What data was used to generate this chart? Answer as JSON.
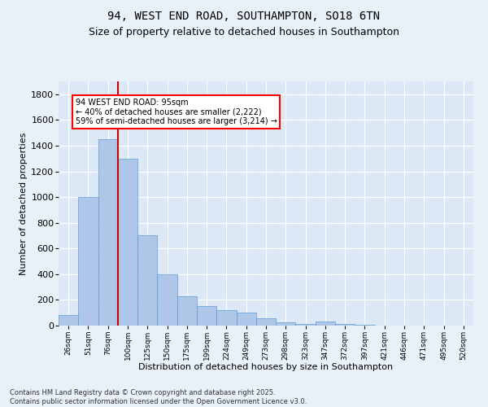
{
  "title1": "94, WEST END ROAD, SOUTHAMPTON, SO18 6TN",
  "title2": "Size of property relative to detached houses in Southampton",
  "xlabel": "Distribution of detached houses by size in Southampton",
  "ylabel": "Number of detached properties",
  "categories": [
    "26sqm",
    "51sqm",
    "76sqm",
    "100sqm",
    "125sqm",
    "150sqm",
    "175sqm",
    "199sqm",
    "224sqm",
    "249sqm",
    "273sqm",
    "298sqm",
    "323sqm",
    "347sqm",
    "372sqm",
    "397sqm",
    "421sqm",
    "446sqm",
    "471sqm",
    "495sqm",
    "520sqm"
  ],
  "values": [
    80,
    1000,
    1450,
    1300,
    700,
    400,
    225,
    150,
    120,
    100,
    60,
    25,
    10,
    30,
    10,
    5,
    2,
    1,
    0,
    0,
    0
  ],
  "bar_color": "#aec6e8",
  "bar_edge_color": "#5b9bd5",
  "vline_color": "#cc0000",
  "annotation_text": "94 WEST END ROAD: 95sqm\n← 40% of detached houses are smaller (2,222)\n59% of semi-detached houses are larger (3,214) →",
  "ylim": [
    0,
    1900
  ],
  "yticks": [
    0,
    200,
    400,
    600,
    800,
    1000,
    1200,
    1400,
    1600,
    1800
  ],
  "bg_color": "#e8f0f8",
  "plot_bg_color": "#dce8f5",
  "footer": "Contains HM Land Registry data © Crown copyright and database right 2025.\nContains public sector information licensed under the Open Government Licence v3.0.",
  "title1_fontsize": 10,
  "title2_fontsize": 9,
  "xlabel_fontsize": 8,
  "ylabel_fontsize": 8,
  "xtick_fontsize": 6.5,
  "ytick_fontsize": 8,
  "footer_fontsize": 6,
  "annot_fontsize": 7
}
